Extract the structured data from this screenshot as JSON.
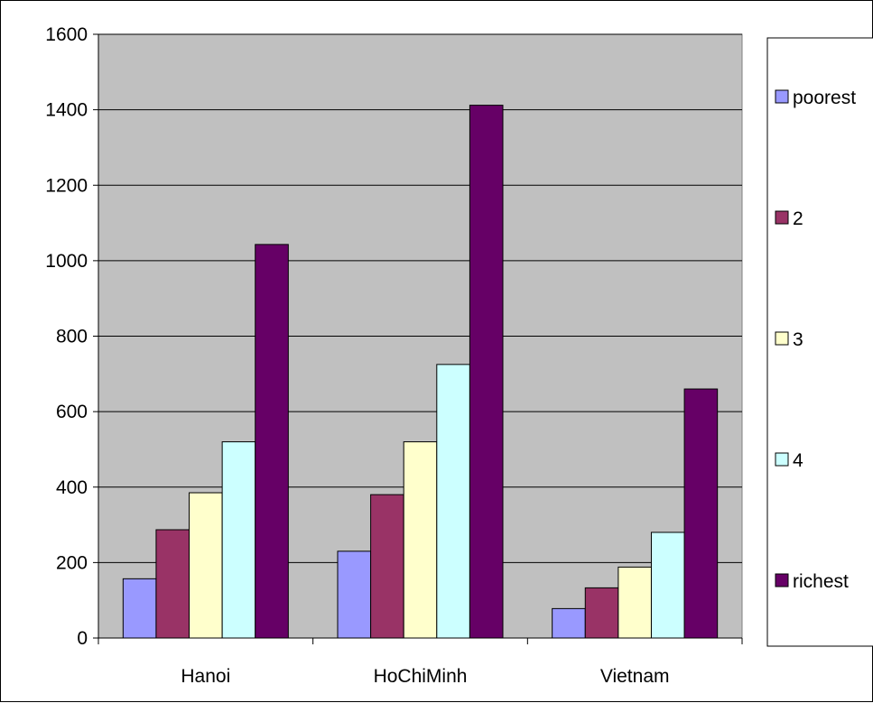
{
  "chart_data": {
    "type": "bar",
    "title": "",
    "xlabel": "",
    "ylabel": "",
    "categories": [
      "Hanoi",
      "HoChiMinh",
      "Vietnam"
    ],
    "ylim": [
      0,
      1600
    ],
    "yticks": [
      0,
      200,
      400,
      600,
      800,
      1000,
      1200,
      1400,
      1600
    ],
    "grid": "horizontal",
    "legend": "right",
    "series": [
      {
        "name": "poorest",
        "color": "#9999ff",
        "values": [
          157,
          230,
          78
        ]
      },
      {
        "name": "2",
        "color": "#993366",
        "values": [
          287,
          380,
          133
        ]
      },
      {
        "name": "3",
        "color": "#ffffcc",
        "values": [
          385,
          520,
          188
        ]
      },
      {
        "name": "4",
        "color": "#ccffff",
        "values": [
          520,
          725,
          280
        ]
      },
      {
        "name": "richest",
        "color": "#660066",
        "values": [
          1043,
          1412,
          660
        ]
      }
    ],
    "plot_background": "#c0c0c0"
  }
}
